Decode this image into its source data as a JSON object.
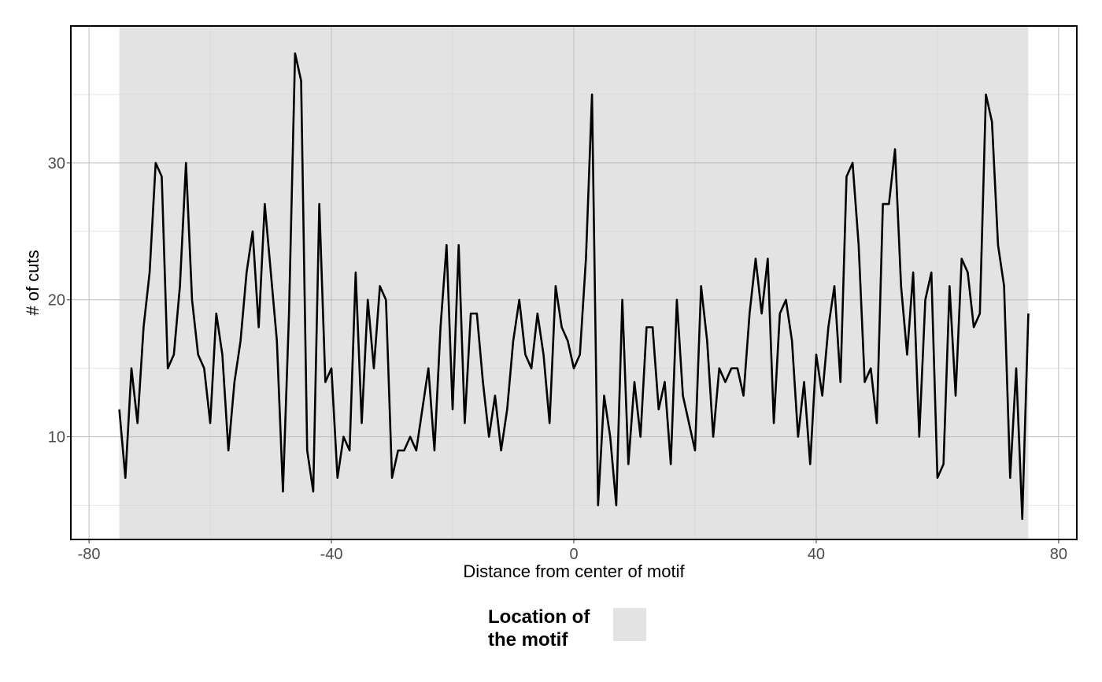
{
  "chart_data": {
    "type": "line",
    "title": "",
    "xlabel": "Distance from center of motif",
    "ylabel": "# of cuts",
    "xlim": [
      -83,
      83
    ],
    "ylim": [
      2.5,
      40
    ],
    "x_ticks": [
      -80,
      -40,
      0,
      40,
      80
    ],
    "y_ticks": [
      10,
      20,
      30
    ],
    "grid": true,
    "motif_region": [
      -75,
      75
    ],
    "legend": {
      "title_lines": [
        "Location of",
        "the motif"
      ],
      "position": "bottom"
    },
    "colors": {
      "line": "#000000",
      "motif_fill": "#e3e3e3",
      "grid_major": "#bdbdbd",
      "grid_minor": "#d6d6d6",
      "panel_border": "#000000"
    },
    "series": [
      {
        "x_start": -75,
        "values": [
          12,
          7,
          15,
          11,
          18,
          22,
          30,
          29,
          15,
          16,
          21,
          30,
          20,
          16,
          15,
          11,
          19,
          16,
          9,
          14,
          17,
          22,
          25,
          18,
          27,
          22,
          17,
          6,
          19,
          38,
          36,
          9,
          6,
          27,
          14,
          15,
          7,
          10,
          9,
          22,
          11,
          20,
          15,
          21,
          20,
          7,
          9,
          9,
          10,
          9,
          12,
          15,
          9,
          18,
          24,
          12,
          24,
          11,
          19,
          19,
          14,
          10,
          13,
          9,
          12,
          17,
          20,
          16,
          15,
          19,
          16,
          11,
          21,
          18,
          17,
          15,
          16,
          23,
          35,
          5,
          13,
          10,
          5,
          20,
          8,
          14,
          10,
          18,
          18,
          12,
          14,
          8,
          20,
          13,
          11,
          9,
          21,
          17,
          10,
          15,
          14,
          15,
          15,
          13,
          19,
          23,
          19,
          23,
          11,
          19,
          20,
          17,
          10,
          14,
          8,
          16,
          13,
          18,
          21,
          14,
          29,
          30,
          24,
          14,
          15,
          11,
          27,
          27,
          31,
          21,
          16,
          22,
          10,
          20,
          22,
          7,
          8,
          21,
          13,
          23,
          22,
          18,
          19,
          35,
          33,
          24,
          21,
          7,
          15,
          4,
          19
        ]
      }
    ]
  }
}
